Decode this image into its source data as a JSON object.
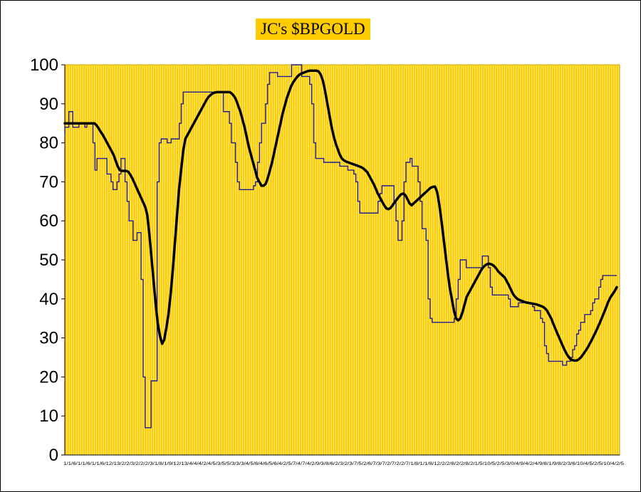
{
  "chart_data": {
    "type": "line",
    "title": "JC's $BPGOLD",
    "xlabel": "",
    "ylabel": "",
    "ylim": [
      0,
      100
    ],
    "yticks": [
      0,
      10,
      20,
      30,
      40,
      50,
      60,
      70,
      80,
      90,
      100
    ],
    "grid": "vertical",
    "colors": {
      "plot_background": "#ffcc00",
      "gridlines": "#fff3b0",
      "raw_line": "#1f1f8f",
      "smooth_line": "#000000",
      "title_background": "#ffcc00"
    },
    "xtick_text": "1/1/6/1/1/6/1/1/6/12/13/2/2/3/2/2/2/3/1/8/1/9/12/13/4/4/4/2/4/5/3/5/5/3/3/3/4/5/6/4/6/5/6/4/2/5/7/4/7/4/2/9/3/8/6/2/3/2/3/7/5/2/6/7/3/7/2/7/2/2/7/1/8/1/1/8/12/2/2/8/2/2/8/2/1/5/10/5/2/5/3/0/4/9/4/2/4/9/8/1/9/8/2/3/6/10/4/5/2/5/10/4/2/5",
    "series": [
      {
        "key": "raw",
        "values": [
          82,
          84,
          84,
          88,
          88,
          84,
          84,
          84,
          85,
          85,
          85,
          84,
          85,
          85,
          85,
          80,
          73,
          76,
          76,
          76,
          76,
          76,
          72,
          72,
          70,
          68,
          68,
          70,
          72,
          76,
          76,
          70,
          65,
          60,
          60,
          55,
          55,
          57,
          57,
          45,
          20,
          7,
          7,
          7,
          19,
          19,
          19,
          70,
          80,
          81,
          81,
          81,
          80,
          80,
          81,
          81,
          81,
          81,
          85,
          90,
          93,
          93,
          93,
          93,
          93,
          93,
          93,
          93,
          93,
          93,
          93,
          93,
          93,
          93,
          93,
          93,
          93,
          93,
          93,
          93,
          88,
          88,
          88,
          85,
          80,
          80,
          75,
          70,
          68,
          68,
          68,
          68,
          68,
          68,
          68,
          69,
          70,
          75,
          80,
          85,
          85,
          90,
          95,
          98,
          98,
          98,
          98,
          97,
          97,
          97,
          97,
          97,
          97,
          97,
          100,
          100,
          100,
          100,
          100,
          97,
          97,
          97,
          97,
          95,
          90,
          80,
          76,
          76,
          76,
          76,
          75,
          75,
          75,
          75,
          75,
          75,
          75,
          75,
          74,
          74,
          74,
          74,
          73,
          73,
          73,
          72,
          70,
          65,
          62,
          62,
          62,
          62,
          62,
          62,
          62,
          62,
          62,
          65,
          67,
          69,
          69,
          69,
          69,
          69,
          69,
          65,
          60,
          55,
          55,
          60,
          70,
          75,
          75,
          76,
          74,
          74,
          74,
          70,
          65,
          58,
          58,
          55,
          40,
          35,
          34,
          34,
          34,
          34,
          34,
          34,
          34,
          34,
          34,
          34,
          34,
          35,
          40,
          45,
          50,
          50,
          50,
          48,
          48,
          48,
          48,
          48,
          48,
          48,
          48,
          51,
          51,
          51,
          48,
          43,
          41,
          41,
          41,
          41,
          41,
          41,
          41,
          41,
          40,
          38,
          38,
          38,
          38,
          39,
          39,
          39,
          39,
          39,
          39,
          39,
          38,
          37,
          37,
          37,
          35,
          34,
          28,
          26,
          24,
          24,
          24,
          24,
          24,
          24,
          24,
          23,
          23,
          24,
          24,
          25,
          27,
          28,
          31,
          32,
          34,
          34,
          36,
          36,
          36,
          37,
          39,
          40,
          40,
          43,
          45,
          46,
          46,
          46,
          46,
          46,
          46,
          46
        ],
        "color": "#1f1f8f"
      },
      {
        "key": "smoothed",
        "values": [
          85,
          85,
          85,
          85,
          85,
          85,
          85,
          85,
          85,
          85,
          85,
          85,
          85,
          85,
          85,
          84.5,
          83.7,
          82.8,
          82,
          81,
          80,
          79,
          78,
          77,
          75.5,
          74,
          73,
          72.8,
          72.8,
          72.8,
          72.6,
          71.8,
          70.8,
          69.6,
          68.4,
          67.2,
          66,
          64.8,
          63.6,
          61.5,
          56.5,
          50.5,
          44.5,
          38.5,
          33.5,
          30.5,
          28.5,
          29.5,
          32.5,
          36,
          41,
          47,
          54,
          61,
          68,
          73,
          78,
          81,
          82,
          83,
          84,
          85,
          86,
          87,
          88,
          89,
          90,
          91,
          91.8,
          92.3,
          92.7,
          92.9,
          93,
          93,
          93,
          93,
          93,
          93,
          93,
          92.6,
          92,
          91,
          89.5,
          88,
          86,
          84,
          81.5,
          79,
          77,
          75,
          73,
          71,
          70,
          69,
          69,
          69.5,
          71,
          73,
          75,
          77.5,
          80,
          82.5,
          85,
          87.5,
          89.5,
          91.5,
          93,
          94.5,
          95.5,
          96.3,
          97,
          97.5,
          97.8,
          98,
          98.2,
          98.4,
          98.5,
          98.5,
          98.5,
          98.5,
          98.3,
          97.5,
          96,
          93.5,
          90.5,
          87.5,
          84.5,
          82,
          80,
          78.5,
          77,
          76,
          75.5,
          75.2,
          75,
          74.8,
          74.6,
          74.4,
          74.2,
          74,
          73.8,
          73.5,
          73,
          72.5,
          71.5,
          70.5,
          69.5,
          68.3,
          67,
          66,
          65,
          64,
          63.2,
          63,
          63.3,
          64,
          64.8,
          65.5,
          66.2,
          66.8,
          67,
          66.6,
          65.6,
          64.5,
          64,
          64.5,
          65,
          65.5,
          66,
          66.5,
          67,
          67.5,
          68,
          68.5,
          68.7,
          68.8,
          67.5,
          64.5,
          60.5,
          56,
          51.5,
          47,
          43,
          40,
          37,
          35,
          34.5,
          35,
          36.5,
          38.5,
          40.5,
          41.5,
          42.5,
          43.5,
          44.5,
          45.5,
          46.5,
          47.5,
          48.2,
          48.7,
          49,
          49,
          48.8,
          48.4,
          47.8,
          47,
          46.5,
          46,
          45.5,
          44.5,
          43.5,
          42.3,
          41.2,
          40.5,
          40,
          39.7,
          39.5,
          39.3,
          39.1,
          39,
          38.9,
          38.8,
          38.7,
          38.6,
          38.4,
          38.2,
          38,
          37.6,
          37,
          36,
          35,
          33.6,
          32.3,
          31,
          29.8,
          28.5,
          27.3,
          26.2,
          25.3,
          24.6,
          24.3,
          24.2,
          24.2,
          24.5,
          25,
          25.7,
          26.5,
          27.3,
          28.3,
          29.3,
          30.4,
          31.5,
          32.7,
          33.9,
          35.2,
          36.5,
          37.9,
          39.3,
          40.4,
          41.2,
          42,
          43
        ],
        "color": "#000000"
      }
    ]
  }
}
